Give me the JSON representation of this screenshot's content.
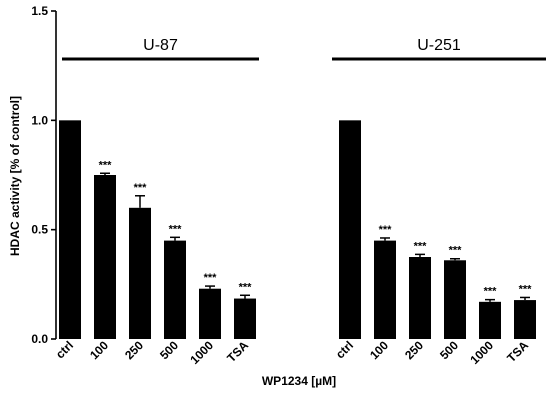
{
  "chart_data": {
    "type": "bar",
    "title": "",
    "xlabel": "WP1234 [µM]",
    "ylabel": "HDAC activity [% of control]",
    "ylim": [
      0,
      1.5
    ],
    "yticks": [
      "0.0",
      "0.5",
      "1.0",
      "1.5"
    ],
    "grid": false,
    "legend": "none",
    "bar_color": "#000000",
    "groups": [
      {
        "name": "U-87",
        "categories": [
          "ctrl",
          "100",
          "250",
          "500",
          "1000",
          "TSA"
        ],
        "values": [
          1.0,
          0.75,
          0.6,
          0.45,
          0.23,
          0.185
        ],
        "errors": [
          0,
          0.008,
          0.055,
          0.015,
          0.012,
          0.015
        ],
        "significance": [
          "",
          "***",
          "***",
          "***",
          "***",
          "***"
        ]
      },
      {
        "name": "U-251",
        "categories": [
          "ctrl",
          "100",
          "250",
          "500",
          "1000",
          "TSA"
        ],
        "values": [
          1.0,
          0.45,
          0.375,
          0.36,
          0.17,
          0.178
        ],
        "errors": [
          0,
          0.012,
          0.012,
          0.007,
          0.01,
          0.012
        ],
        "significance": [
          "",
          "***",
          "***",
          "***",
          "***",
          "***"
        ]
      }
    ]
  }
}
